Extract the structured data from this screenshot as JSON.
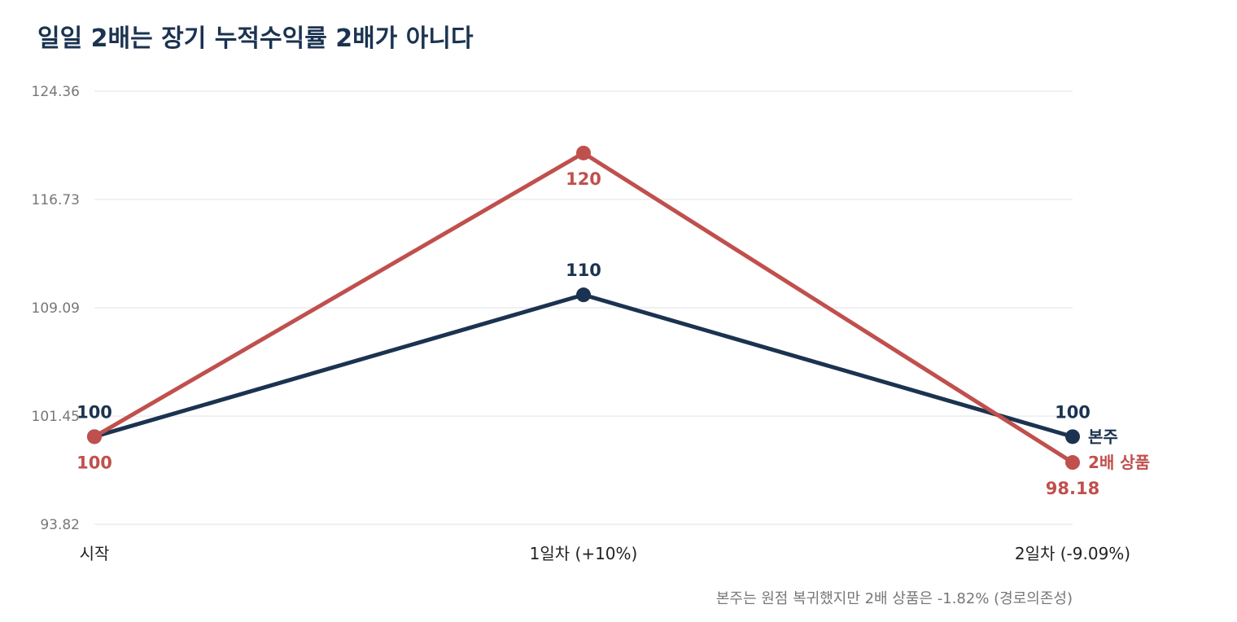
{
  "chart_data": {
    "type": "line",
    "title": "일일 2배는 장기 누적수익률 2배가 아니다",
    "categories": [
      "시작",
      "1일차 (+10%)",
      "2일차 (-9.09%)"
    ],
    "y_ticks": [
      "124.36",
      "116.73",
      "109.09",
      "101.45",
      "93.82"
    ],
    "ylim": [
      93.82,
      124.36
    ],
    "grid": true,
    "series": [
      {
        "name": "본주",
        "values": [
          100,
          110,
          100
        ],
        "labels": [
          "100",
          "110",
          "100"
        ],
        "color": "#1b3350",
        "label_pos": [
          "above",
          "above",
          "above"
        ]
      },
      {
        "name": "2배 상품",
        "values": [
          100,
          120,
          98.18
        ],
        "labels": [
          "100",
          "120",
          "98.18"
        ],
        "color": "#c0504d",
        "label_pos": [
          "below",
          "below",
          "below"
        ]
      }
    ],
    "annotation": "본주는 원점 복귀했지만 2배 상품은 -1.82% (경로의존성)"
  }
}
